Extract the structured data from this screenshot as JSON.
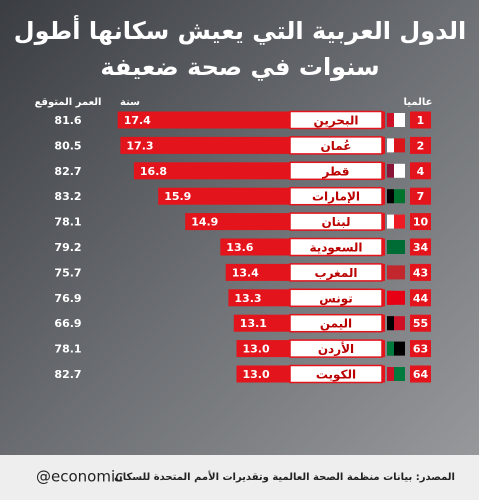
{
  "chart_data": {
    "type": "bar",
    "orientation": "horizontal",
    "title": [
      "الدول العربية التي يعيش سكانها أطول",
      "سنوات في صحة ضعيفة"
    ],
    "column_headers": {
      "rank": "عالميا",
      "value": "سنة",
      "life_expectancy": "العمر المتوقع"
    },
    "categories": [
      "البحرين",
      "عُمان",
      "قطر",
      "الإمارات",
      "لبنان",
      "السعودية",
      "المغرب",
      "تونس",
      "اليمن",
      "الأردن",
      "الكويت"
    ],
    "ranks": [
      "1",
      "2",
      "4",
      "7",
      "10",
      "34",
      "43",
      "44",
      "55",
      "63",
      "64"
    ],
    "life_expectancy": [
      "81.6",
      "80.5",
      "82.7",
      "83.2",
      "78.1",
      "79.2",
      "75.7",
      "76.9",
      "66.9",
      "78.1",
      "82.7"
    ],
    "values": [
      17.4,
      17.3,
      16.8,
      15.9,
      14.9,
      13.6,
      13.4,
      13.3,
      13.1,
      13.0,
      13.0
    ],
    "value_labels": [
      "17.4",
      "17.3",
      "16.8",
      "15.9",
      "14.9",
      "13.6",
      "13.4",
      "13.3",
      "13.1",
      "13.0",
      "13.0"
    ],
    "color": "#e3141b",
    "xlim": [
      7.5,
      17.5
    ]
  },
  "footer": {
    "handle": "@economic",
    "source": "المصدر: بيانات منظمة الصحة العالمية   وتقديرات الأمم المتحدة للسكان"
  }
}
